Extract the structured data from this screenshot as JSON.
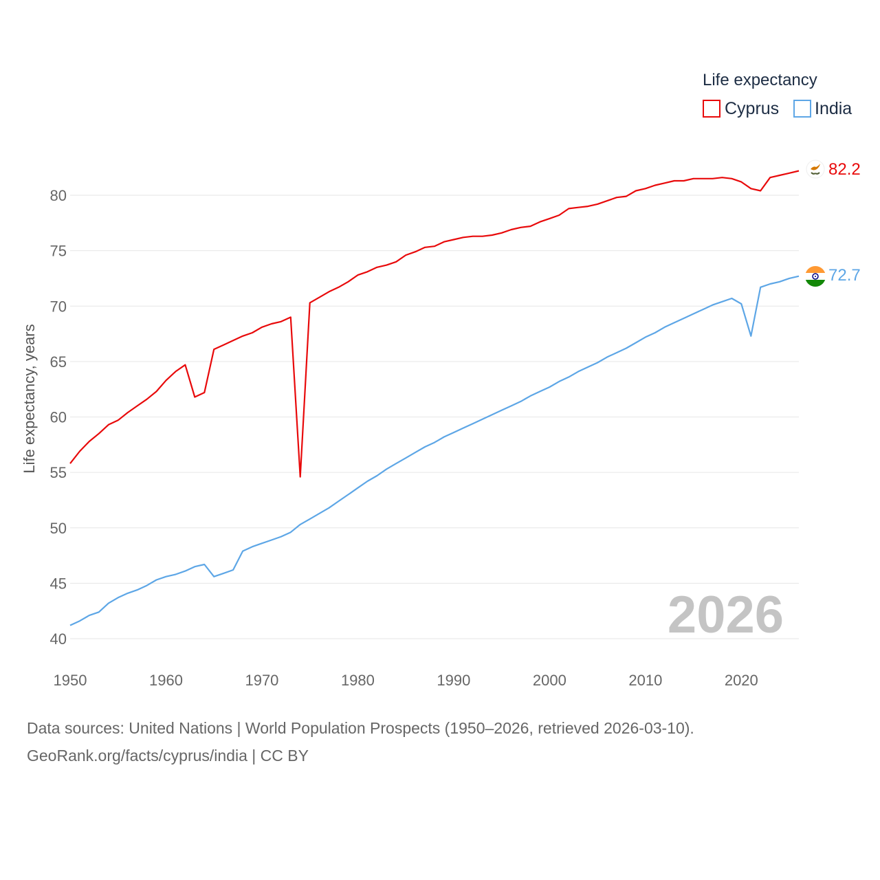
{
  "chart_data": {
    "type": "line",
    "title": "Life expectancy",
    "xlabel": "",
    "ylabel": "Life expectancy, years",
    "xlim": [
      1950,
      2026
    ],
    "ylim": [
      40,
      83
    ],
    "x_ticks": [
      "1950",
      "1960",
      "1970",
      "1980",
      "1990",
      "2000",
      "2010",
      "2020"
    ],
    "y_ticks": [
      "40",
      "45",
      "50",
      "55",
      "60",
      "65",
      "70",
      "75",
      "80"
    ],
    "legend_position": "top-right",
    "year_watermark": "2026",
    "x": [
      1950,
      1951,
      1952,
      1953,
      1954,
      1955,
      1956,
      1957,
      1958,
      1959,
      1960,
      1961,
      1962,
      1963,
      1964,
      1965,
      1966,
      1967,
      1968,
      1969,
      1970,
      1971,
      1972,
      1973,
      1974,
      1975,
      1976,
      1977,
      1978,
      1979,
      1980,
      1981,
      1982,
      1983,
      1984,
      1985,
      1986,
      1987,
      1988,
      1989,
      1990,
      1991,
      1992,
      1993,
      1994,
      1995,
      1996,
      1997,
      1998,
      1999,
      2000,
      2001,
      2002,
      2003,
      2004,
      2005,
      2006,
      2007,
      2008,
      2009,
      2010,
      2011,
      2012,
      2013,
      2014,
      2015,
      2016,
      2017,
      2018,
      2019,
      2020,
      2021,
      2022,
      2023,
      2024,
      2025,
      2026
    ],
    "series": [
      {
        "name": "Cyprus",
        "color": "#e8090a",
        "end_label": "82.2",
        "flag_icon": "cyprus-flag-icon",
        "values": [
          55.8,
          56.9,
          57.8,
          58.5,
          59.3,
          59.7,
          60.4,
          61.0,
          61.6,
          62.3,
          63.3,
          64.1,
          64.7,
          61.8,
          62.2,
          66.1,
          66.5,
          66.9,
          67.3,
          67.6,
          68.1,
          68.4,
          68.6,
          69.0,
          54.6,
          70.3,
          70.8,
          71.3,
          71.7,
          72.2,
          72.8,
          73.1,
          73.5,
          73.7,
          74.0,
          74.6,
          74.9,
          75.3,
          75.4,
          75.8,
          76.0,
          76.2,
          76.3,
          76.3,
          76.4,
          76.6,
          76.9,
          77.1,
          77.2,
          77.6,
          77.9,
          78.2,
          78.8,
          78.9,
          79.0,
          79.2,
          79.5,
          79.8,
          79.9,
          80.4,
          80.6,
          80.9,
          81.1,
          81.3,
          81.3,
          81.5,
          81.5,
          81.5,
          81.6,
          81.5,
          81.2,
          80.6,
          80.4,
          81.6,
          81.8,
          82.0,
          82.2
        ]
      },
      {
        "name": "India",
        "color": "#5da6e6",
        "end_label": "72.7",
        "flag_icon": "india-flag-icon",
        "values": [
          41.2,
          41.6,
          42.1,
          42.4,
          43.2,
          43.7,
          44.1,
          44.4,
          44.8,
          45.3,
          45.6,
          45.8,
          46.1,
          46.5,
          46.7,
          45.6,
          45.9,
          46.2,
          47.9,
          48.3,
          48.6,
          48.9,
          49.2,
          49.6,
          50.3,
          50.8,
          51.3,
          51.8,
          52.4,
          53.0,
          53.6,
          54.2,
          54.7,
          55.3,
          55.8,
          56.3,
          56.8,
          57.3,
          57.7,
          58.2,
          58.6,
          59.0,
          59.4,
          59.8,
          60.2,
          60.6,
          61.0,
          61.4,
          61.9,
          62.3,
          62.7,
          63.2,
          63.6,
          64.1,
          64.5,
          64.9,
          65.4,
          65.8,
          66.2,
          66.7,
          67.2,
          67.6,
          68.1,
          68.5,
          68.9,
          69.3,
          69.7,
          70.1,
          70.4,
          70.7,
          70.2,
          67.3,
          71.7,
          72.0,
          72.2,
          72.5,
          72.7
        ]
      }
    ]
  },
  "footer": {
    "source_line": "Data sources: United Nations | World Population Prospects (1950–2026, retrieved 2026-03-10).",
    "credit_line": "GeoRank.org/facts/cyprus/india | CC BY"
  }
}
